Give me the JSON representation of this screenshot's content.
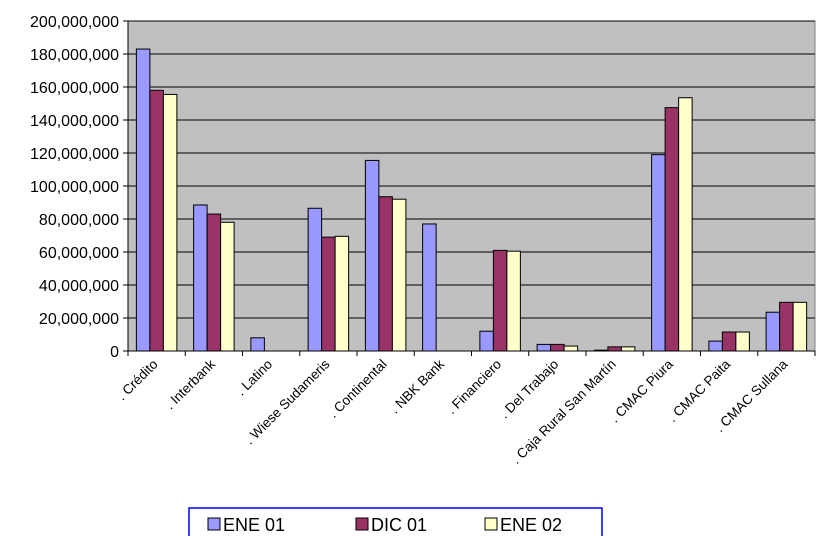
{
  "chart_data": {
    "type": "bar",
    "categories": [
      ". Crédito",
      ". Interbank",
      ". Latino",
      ". Wiese Sudameris",
      ". Continental",
      ". NBK Bank",
      ". Financiero",
      ". Del Trabajo",
      ". Caja Rural San Martín",
      ". CMAC Piura",
      ". CMAC Paita",
      ". CMAC Sullana"
    ],
    "series": [
      {
        "name": "ENE 01",
        "color": "#9999ff",
        "values": [
          183000000,
          88500000,
          8000000,
          86500000,
          115500000,
          77000000,
          12000000,
          4000000,
          500000,
          119000000,
          6000000,
          23500000
        ]
      },
      {
        "name": "DIC 01",
        "color": "#993366",
        "values": [
          158000000,
          83000000,
          0,
          69000000,
          93500000,
          0,
          61000000,
          4000000,
          2500000,
          147500000,
          11500000,
          29500000
        ]
      },
      {
        "name": "ENE 02",
        "color": "#ffffcc",
        "values": [
          155500000,
          78000000,
          0,
          69500000,
          92000000,
          0,
          60500000,
          3000000,
          2500000,
          153500000,
          11500000,
          29500000
        ]
      }
    ],
    "ylim": [
      0,
      200000000
    ],
    "ytick_step": 20000000,
    "ytick_labels": [
      "0",
      "20,000,000",
      "40,000,000",
      "60,000,000",
      "80,000,000",
      "100,000,000",
      "120,000,000",
      "140,000,000",
      "160,000,000",
      "180,000,000",
      "200,000,000"
    ],
    "plot_background": "#c0c0c0",
    "grid": true,
    "legend_position": "bottom",
    "legend_border_color": "#0000ff"
  }
}
